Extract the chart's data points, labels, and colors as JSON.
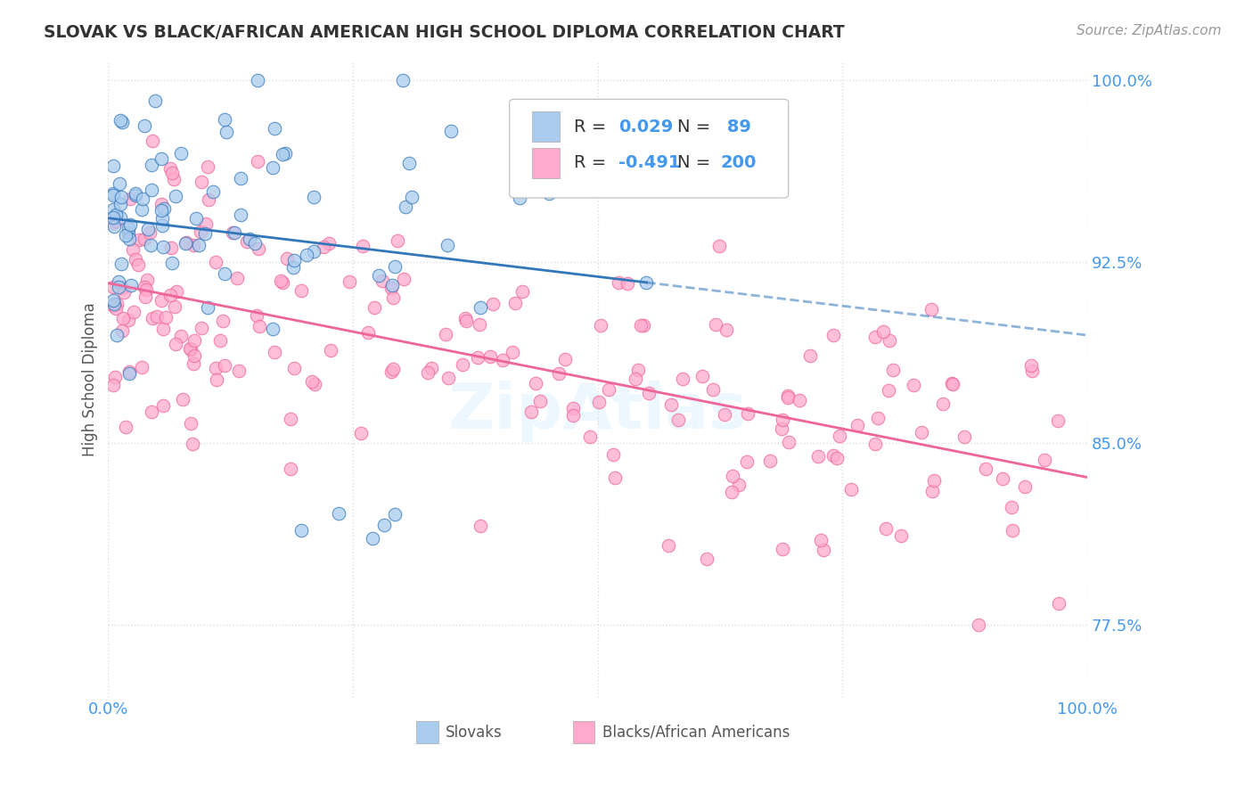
{
  "title": "SLOVAK VS BLACK/AFRICAN AMERICAN HIGH SCHOOL DIPLOMA CORRELATION CHART",
  "source": "Source: ZipAtlas.com",
  "ylabel": "High School Diploma",
  "xlim": [
    0.0,
    1.0
  ],
  "ylim": [
    0.745,
    1.008
  ],
  "yticks": [
    0.775,
    0.85,
    0.925,
    1.0
  ],
  "ytick_labels": [
    "77.5%",
    "85.0%",
    "92.5%",
    "100.0%"
  ],
  "xticks": [
    0.0,
    0.25,
    0.5,
    0.75,
    1.0
  ],
  "xtick_labels": [
    "0.0%",
    "",
    "",
    "",
    "100.0%"
  ],
  "blue_R": 0.029,
  "blue_N": 89,
  "pink_R": -0.491,
  "pink_N": 200,
  "blue_color": "#aaccee",
  "pink_color": "#ffaacc",
  "blue_line_color": "#3377bb",
  "pink_line_color": "#ee6699",
  "title_color": "#333333",
  "axis_label_color": "#555555",
  "tick_label_color": "#4499ee",
  "background_color": "#ffffff",
  "grid_color": "#dddddd"
}
